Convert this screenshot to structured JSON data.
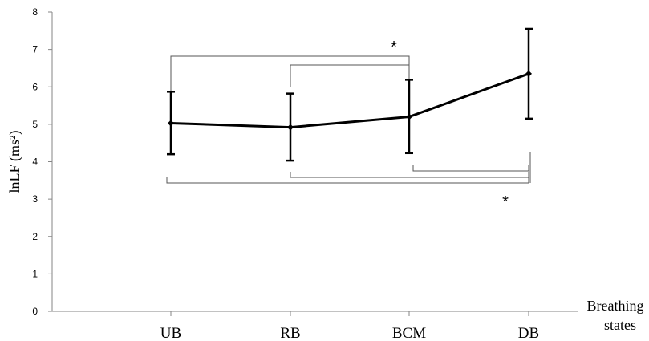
{
  "chart_data": {
    "type": "line",
    "title": "",
    "xlabel": "Breathing states",
    "xlabel_lines": [
      "Breathing",
      "states"
    ],
    "ylabel": "lnLF (ms²)",
    "ylim": [
      0,
      8
    ],
    "yticks": [
      0,
      1,
      2,
      3,
      4,
      5,
      6,
      7,
      8
    ],
    "categories": [
      "UB",
      "RB",
      "BCM",
      "DB"
    ],
    "series": [
      {
        "values": [
          5.03,
          4.92,
          5.2,
          6.35
        ],
        "error_low": [
          4.2,
          4.03,
          4.23,
          5.15
        ],
        "error_high": [
          5.87,
          5.82,
          6.19,
          7.55
        ]
      }
    ],
    "significance": [
      {
        "label": "*",
        "placement": "above",
        "pairs": [
          [
            "UB",
            "BCM"
          ],
          [
            "RB",
            "BCM"
          ]
        ]
      },
      {
        "label": "*",
        "placement": "below",
        "pairs": [
          [
            "UB",
            "DB"
          ],
          [
            "RB",
            "DB"
          ],
          [
            "BCM",
            "DB"
          ]
        ]
      }
    ],
    "grid": false,
    "line_color": "#000000"
  }
}
